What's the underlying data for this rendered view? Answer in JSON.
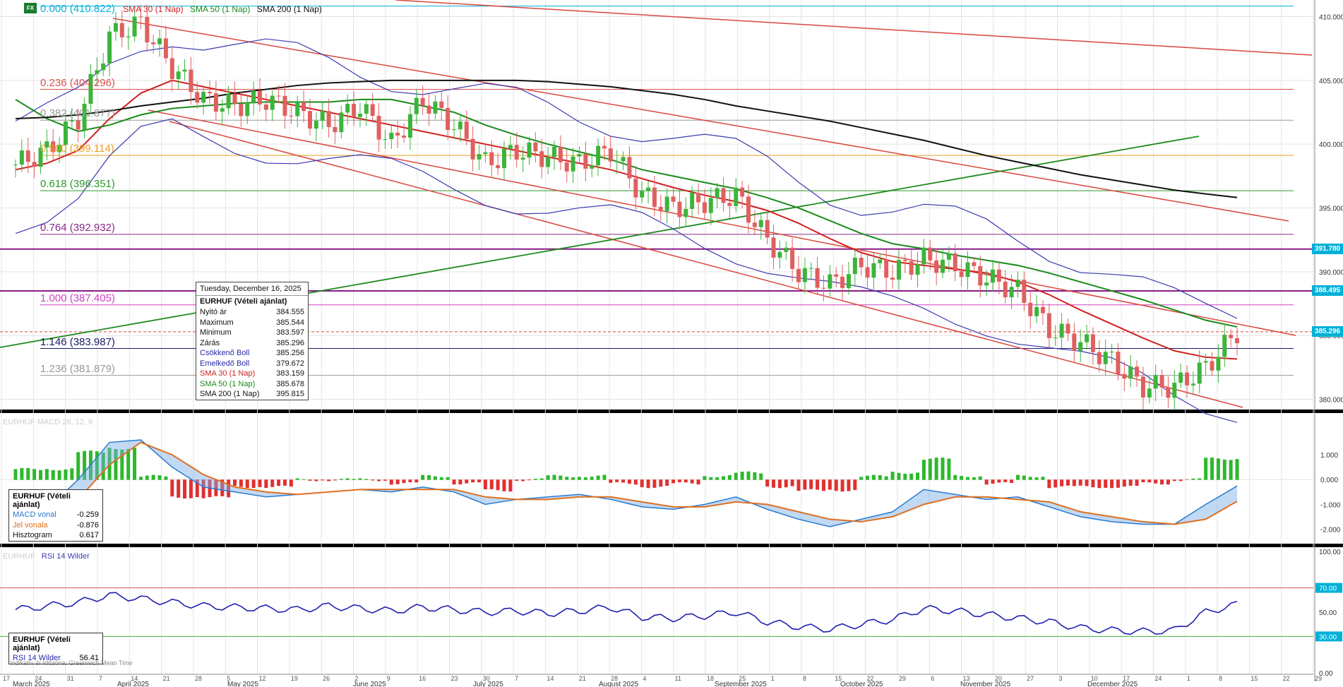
{
  "header": {
    "fx_badge": "FX",
    "fib0": "0.000 (410.822)",
    "sma30": "SMA 30 (1 Nap)",
    "sma50": "SMA 50 (1 Nap)",
    "sma200": "SMA 200 (1 Nap)"
  },
  "fib_labels": [
    {
      "label": "0.236 (404.296)",
      "value": 404.296,
      "color": "#d9534f"
    },
    {
      "label": "0.382 (401.877)",
      "value": 401.877,
      "color": "#999999"
    },
    {
      "label": "0.500 (399.114)",
      "value": 399.114,
      "color": "#e8a020"
    },
    {
      "label": "0.618 (396.351)",
      "value": 396.351,
      "color": "#2a9a2a"
    },
    {
      "label": "0.764 (392.932)",
      "value": 392.932,
      "color": "#8a2a8a"
    },
    {
      "label": "1.000 (387.405)",
      "value": 387.405,
      "color": "#d040c0"
    },
    {
      "label": "1.146 (383.987)",
      "value": 383.987,
      "color": "#1a1a6a"
    },
    {
      "label": "1.236 (381.879)",
      "value": 381.879,
      "color": "#999999"
    }
  ],
  "price_axis_ticks": [
    "410.000",
    "405.000",
    "400.000",
    "395.000",
    "390.000",
    "385.000",
    "380.000"
  ],
  "price_tags": [
    {
      "label": "391.780",
      "value": 391.78,
      "color": "#00b0d8"
    },
    {
      "label": "388.495",
      "value": 388.495,
      "color": "#00b0d8"
    },
    {
      "label": "385.296",
      "value": 385.296,
      "color": "#00b0d8"
    }
  ],
  "tooltip": {
    "date": "Tuesday, December 16, 2025",
    "title": "EURHUF (Vételi ajánlat)",
    "rows": [
      {
        "label": "Nyitó ár",
        "value": "384.555",
        "color": "#111111"
      },
      {
        "label": "Maximum",
        "value": "385.544",
        "color": "#111111"
      },
      {
        "label": "Minimum",
        "value": "383.597",
        "color": "#111111"
      },
      {
        "label": "Zárás",
        "value": "385.296",
        "color": "#111111"
      },
      {
        "label": "Csökkenő Boll",
        "value": "385.256",
        "color": "#2a2aaa"
      },
      {
        "label": "Emelkedő Boll",
        "value": "379.672",
        "color": "#2a2aaa"
      },
      {
        "label": "SMA 30 (1 Nap)",
        "value": "383.159",
        "color": "#d02020"
      },
      {
        "label": "SMA 50 (1 Nap)",
        "value": "385.678",
        "color": "#1a8a1a"
      },
      {
        "label": "SMA 200 (1 Nap)",
        "value": "395.815",
        "color": "#111111"
      }
    ]
  },
  "macd_panel": {
    "header": "EURHUF  MACD 26, 12, 9",
    "axis_ticks": [
      "1.000",
      "0.000",
      "-1.000",
      "-2.000"
    ],
    "legend_title": "EURHUF (Vételi ajánlat)",
    "rows": [
      {
        "label": "MACD vonal",
        "value": "-0.259",
        "color": "#2a7ad0"
      },
      {
        "label": "Jel vonala",
        "value": "-0.876",
        "color": "#e07020"
      },
      {
        "label": "Hisztogram",
        "value": "0.617",
        "color": "#111111"
      }
    ]
  },
  "rsi_panel": {
    "header_sym": "EURHUF",
    "header": "RSI 14 Wilder",
    "axis_ticks": [
      "100.00",
      "70.00",
      "50.00",
      "30.00",
      "0.00"
    ],
    "legend_title": "EURHUF (Vételi ajánlat)",
    "rows": [
      {
        "label": "RSI 14 Wilder",
        "value": "56.41",
        "color": "#2a2aaa"
      }
    ]
  },
  "footer_note": "Indikatív ár    Időzóna: Greenwich Mean Time",
  "x_axis": {
    "day_ticks": [
      "17",
      "24",
      "31",
      "7",
      "14",
      "21",
      "28",
      "5",
      "12",
      "19",
      "26",
      "2",
      "9",
      "16",
      "23",
      "30",
      "7",
      "14",
      "21",
      "28",
      "4",
      "11",
      "18",
      "25",
      "1",
      "8",
      "15",
      "22",
      "29",
      "6",
      "13",
      "20",
      "27",
      "3",
      "10",
      "17",
      "24",
      "1",
      "8",
      "15",
      "22",
      "29"
    ],
    "months": [
      "March 2025",
      "April 2025",
      "May 2025",
      "June 2025",
      "July 2025",
      "August 2025",
      "September 2025",
      "October 2025",
      "November 2025",
      "December 2025"
    ]
  },
  "chart_data": {
    "type": "line",
    "symbol": "EURHUF",
    "title": "",
    "ylim": [
      379.2,
      411.3
    ],
    "weekly_dates": [
      "2025-03-17",
      "2025-03-24",
      "2025-03-31",
      "2025-04-07",
      "2025-04-14",
      "2025-04-21",
      "2025-04-28",
      "2025-05-05",
      "2025-05-12",
      "2025-05-19",
      "2025-05-26",
      "2025-06-02",
      "2025-06-09",
      "2025-06-16",
      "2025-06-23",
      "2025-06-30",
      "2025-07-07",
      "2025-07-14",
      "2025-07-21",
      "2025-07-28",
      "2025-08-04",
      "2025-08-11",
      "2025-08-18",
      "2025-08-25",
      "2025-09-01",
      "2025-09-08",
      "2025-09-15",
      "2025-09-22",
      "2025-09-29",
      "2025-10-06",
      "2025-10-13",
      "2025-10-20",
      "2025-10-27",
      "2025-11-03",
      "2025-11-10",
      "2025-11-17",
      "2025-11-24",
      "2025-12-01",
      "2025-12-08",
      "2025-12-15"
    ],
    "series": [
      {
        "name": "EURHUF (Vételi ajánlat)",
        "values": [
          398.4,
          399.5,
          402.0,
          408.5,
          409.5,
          406.0,
          403.5,
          403.0,
          403.5,
          402.5,
          401.5,
          403.0,
          400.0,
          403.5,
          401.5,
          398.5,
          399.5,
          399.0,
          398.5,
          399.5,
          396.0,
          395.0,
          395.5,
          396.0,
          392.5,
          390.0,
          389.0,
          390.5,
          390.0,
          391.0,
          390.5,
          389.5,
          388.5,
          385.5,
          384.5,
          383.0,
          381.0,
          381.0,
          382.5,
          385.296
        ]
      },
      {
        "name": "SMA 30 (1 Nap)",
        "values": [
          398.0,
          398.5,
          399.5,
          402.0,
          404.0,
          405.0,
          404.5,
          404.0,
          403.5,
          403.0,
          402.5,
          402.0,
          401.5,
          401.0,
          400.5,
          400.0,
          399.5,
          399.0,
          398.5,
          398.0,
          397.3,
          396.6,
          396.0,
          395.5,
          394.8,
          393.8,
          392.6,
          391.5,
          390.8,
          390.5,
          390.2,
          389.9,
          389.2,
          388.2,
          387.0,
          385.9,
          384.8,
          383.8,
          383.3,
          383.159
        ]
      },
      {
        "name": "SMA 50 (1 Nap)",
        "values": [
          403.5,
          402.0,
          401.0,
          401.5,
          402.3,
          402.8,
          403.0,
          403.2,
          403.3,
          403.3,
          403.3,
          403.5,
          403.5,
          403.0,
          402.5,
          401.5,
          400.7,
          400.0,
          399.4,
          398.8,
          398.0,
          397.5,
          397.0,
          396.5,
          395.8,
          395.0,
          394.0,
          393.0,
          392.2,
          391.8,
          391.3,
          390.9,
          390.5,
          389.9,
          389.2,
          388.5,
          387.8,
          387.0,
          386.2,
          385.678
        ]
      },
      {
        "name": "SMA 200 (1 Nap)",
        "values": [
          402.0,
          402.1,
          402.3,
          402.6,
          403.0,
          403.3,
          403.6,
          404.0,
          404.3,
          404.6,
          404.8,
          404.9,
          405.0,
          405.0,
          405.0,
          405.0,
          405.0,
          404.9,
          404.7,
          404.5,
          404.2,
          403.9,
          403.5,
          403.0,
          402.6,
          402.2,
          401.8,
          401.3,
          400.8,
          400.3,
          399.7,
          399.1,
          398.6,
          398.1,
          397.6,
          397.2,
          396.8,
          396.4,
          396.1,
          395.815
        ]
      }
    ],
    "rsi_values": [
      52,
      55,
      58,
      64,
      61,
      58,
      55,
      54,
      53,
      52,
      55,
      53,
      51,
      54,
      52,
      50,
      51,
      49,
      51,
      54,
      46,
      45,
      47,
      50,
      42,
      38,
      36,
      40,
      44,
      53,
      51,
      48,
      45,
      42,
      37,
      35,
      34,
      35,
      50,
      56.41
    ],
    "macd_values": [
      -1.5,
      -1.2,
      0.0,
      1.5,
      1.6,
      0.5,
      -0.3,
      -0.5,
      -0.7,
      -0.6,
      -0.5,
      -0.4,
      -0.5,
      -0.3,
      -0.5,
      -1.0,
      -0.8,
      -0.7,
      -0.6,
      -0.8,
      -1.1,
      -1.2,
      -1.0,
      -0.7,
      -1.2,
      -1.6,
      -1.9,
      -1.6,
      -1.3,
      -0.4,
      -0.6,
      -0.8,
      -0.7,
      -1.1,
      -1.5,
      -1.7,
      -1.8,
      -1.8,
      -1.0,
      -0.259
    ],
    "signal_values": [
      -1.8,
      -1.5,
      -0.8,
      0.6,
      1.5,
      1.0,
      0.2,
      -0.3,
      -0.5,
      -0.6,
      -0.5,
      -0.4,
      -0.4,
      -0.4,
      -0.4,
      -0.7,
      -0.8,
      -0.8,
      -0.7,
      -0.7,
      -0.9,
      -1.1,
      -1.1,
      -0.9,
      -1.0,
      -1.3,
      -1.6,
      -1.7,
      -1.5,
      -1.0,
      -0.7,
      -0.7,
      -0.8,
      -0.9,
      -1.3,
      -1.5,
      -1.7,
      -1.8,
      -1.6,
      -0.876
    ],
    "rsi_levels": [
      70,
      30
    ]
  }
}
